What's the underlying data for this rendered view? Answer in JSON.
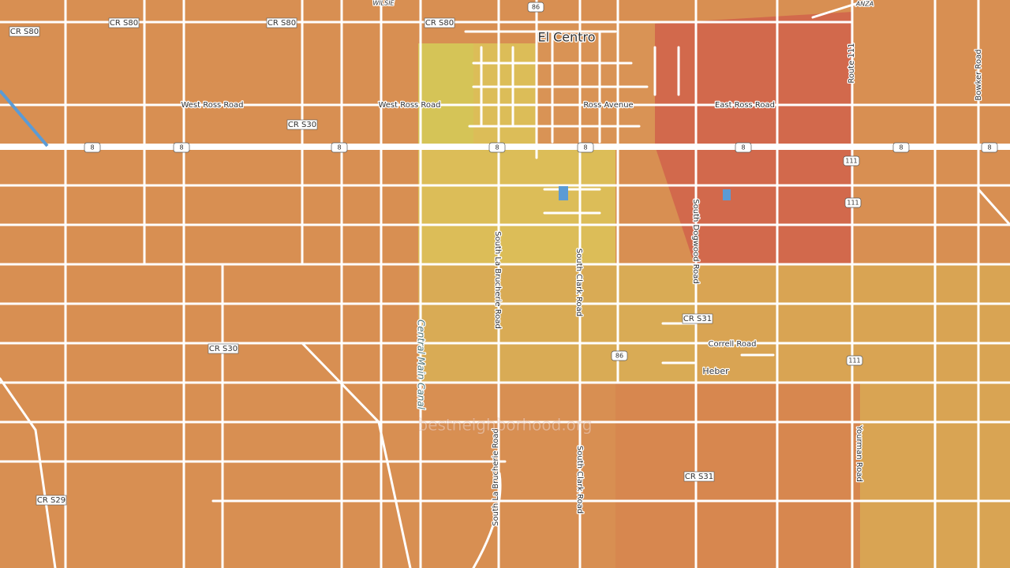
{
  "map": {
    "places": [
      "El Centro",
      "Heber",
      "WILSIE",
      "ANZA"
    ],
    "roads": [
      "CR S80",
      "CR S80",
      "CR S80",
      "CR S80",
      "West Ross Road",
      "West Ross Road",
      "Ross Avenue",
      "East Ross Road",
      "CR S30",
      "CR S30",
      "Route 111",
      "Bowker Road",
      "South La Brucherie Road",
      "South La Brucherie Road",
      "South Clark Road",
      "South Clark Road",
      "South Dogwood Road",
      "Central Main Canal",
      "CR S31",
      "CR S31",
      "Correll Road",
      "Yourman Road",
      "CR S29"
    ],
    "shields": [
      "86",
      "86",
      "8",
      "8",
      "8",
      "8",
      "8",
      "8",
      "8",
      "8",
      "111",
      "111",
      "111"
    ],
    "watermark": "bestneighborhood.org"
  }
}
